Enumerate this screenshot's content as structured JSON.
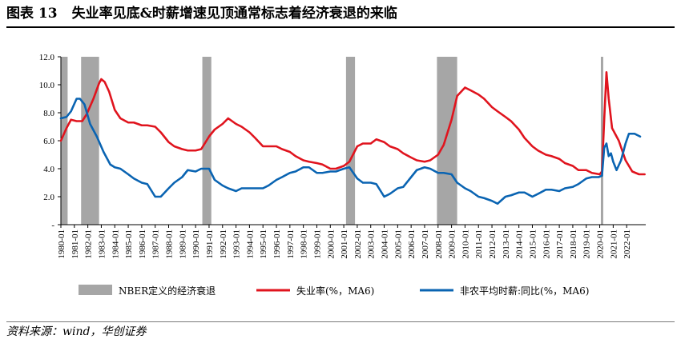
{
  "figure": {
    "number": "图表 13",
    "title": "失业率见底&时薪增速见顶通常标志着经济衰退的来临",
    "source": "资料来源：wind，华创证券"
  },
  "chart_data": {
    "type": "line",
    "title": "失业率见底&时薪增速见顶通常标志着经济衰退的来临",
    "xlabel": "",
    "ylabel": "",
    "ylim": [
      0,
      12
    ],
    "xlim": [
      "1980-01",
      "2023-06"
    ],
    "y_ticks": [
      "-",
      "2.0",
      "4.0",
      "6.0",
      "8.0",
      "10.0",
      "12.0"
    ],
    "x_ticks": [
      "1980-01",
      "1981-01",
      "1982-01",
      "1983-01",
      "1984-01",
      "1985-01",
      "1986-01",
      "1987-01",
      "1988-01",
      "1989-01",
      "1990-01",
      "1991-01",
      "1992-01",
      "1993-01",
      "1994-01",
      "1995-01",
      "1996-01",
      "1997-01",
      "1998-01",
      "1999-01",
      "2000-01",
      "2001-01",
      "2002-01",
      "2003-01",
      "2004-01",
      "2005-01",
      "2006-01",
      "2007-01",
      "2008-01",
      "2009-01",
      "2010-01",
      "2011-01",
      "2012-01",
      "2013-01",
      "2014-01",
      "2015-01",
      "2016-01",
      "2017-01",
      "2018-01",
      "2019-01",
      "2020-01",
      "2021-01",
      "2022-01"
    ],
    "grid": false,
    "legend_position": "bottom",
    "recessions": {
      "name": "NBER定义的经济衰退",
      "color": "#a6a6a6",
      "periods": [
        [
          "1980-01",
          "1980-07"
        ],
        [
          "1981-07",
          "1982-11"
        ],
        [
          "1990-07",
          "1991-03"
        ],
        [
          "2001-03",
          "2001-11"
        ],
        [
          "2007-12",
          "2009-06"
        ],
        [
          "2020-02",
          "2020-04"
        ]
      ]
    },
    "series": [
      {
        "name": "失业率(%，MA6)",
        "color": "#e0141e",
        "points": [
          [
            "1980-01",
            6.0
          ],
          [
            "1980-06",
            6.9
          ],
          [
            "1980-10",
            7.5
          ],
          [
            "1981-03",
            7.4
          ],
          [
            "1981-08",
            7.4
          ],
          [
            "1981-12",
            7.9
          ],
          [
            "1982-06",
            9.0
          ],
          [
            "1982-11",
            10.1
          ],
          [
            "1983-01",
            10.4
          ],
          [
            "1983-04",
            10.2
          ],
          [
            "1983-08",
            9.5
          ],
          [
            "1984-01",
            8.2
          ],
          [
            "1984-06",
            7.6
          ],
          [
            "1985-01",
            7.3
          ],
          [
            "1985-06",
            7.3
          ],
          [
            "1986-01",
            7.1
          ],
          [
            "1986-06",
            7.1
          ],
          [
            "1987-01",
            7.0
          ],
          [
            "1987-06",
            6.6
          ],
          [
            "1988-01",
            5.9
          ],
          [
            "1988-06",
            5.6
          ],
          [
            "1989-01",
            5.4
          ],
          [
            "1989-06",
            5.3
          ],
          [
            "1990-01",
            5.3
          ],
          [
            "1990-06",
            5.4
          ],
          [
            "1991-01",
            6.3
          ],
          [
            "1991-06",
            6.8
          ],
          [
            "1992-01",
            7.2
          ],
          [
            "1992-06",
            7.6
          ],
          [
            "1993-01",
            7.2
          ],
          [
            "1993-06",
            7.0
          ],
          [
            "1994-01",
            6.6
          ],
          [
            "1994-06",
            6.2
          ],
          [
            "1995-01",
            5.6
          ],
          [
            "1995-06",
            5.6
          ],
          [
            "1996-01",
            5.6
          ],
          [
            "1996-06",
            5.4
          ],
          [
            "1997-01",
            5.2
          ],
          [
            "1997-06",
            4.9
          ],
          [
            "1998-01",
            4.6
          ],
          [
            "1998-06",
            4.5
          ],
          [
            "1999-01",
            4.4
          ],
          [
            "1999-06",
            4.3
          ],
          [
            "2000-01",
            4.0
          ],
          [
            "2000-06",
            4.0
          ],
          [
            "2001-01",
            4.2
          ],
          [
            "2001-06",
            4.5
          ],
          [
            "2002-01",
            5.6
          ],
          [
            "2002-06",
            5.8
          ],
          [
            "2003-01",
            5.8
          ],
          [
            "2003-06",
            6.1
          ],
          [
            "2004-01",
            5.9
          ],
          [
            "2004-06",
            5.6
          ],
          [
            "2005-01",
            5.4
          ],
          [
            "2005-06",
            5.1
          ],
          [
            "2006-01",
            4.8
          ],
          [
            "2006-06",
            4.6
          ],
          [
            "2007-01",
            4.5
          ],
          [
            "2007-06",
            4.6
          ],
          [
            "2008-01",
            5.0
          ],
          [
            "2008-06",
            5.7
          ],
          [
            "2009-01",
            7.5
          ],
          [
            "2009-06",
            9.2
          ],
          [
            "2010-01",
            9.8
          ],
          [
            "2010-06",
            9.6
          ],
          [
            "2011-01",
            9.3
          ],
          [
            "2011-06",
            9.0
          ],
          [
            "2012-01",
            8.4
          ],
          [
            "2012-06",
            8.1
          ],
          [
            "2013-01",
            7.7
          ],
          [
            "2013-06",
            7.4
          ],
          [
            "2014-01",
            6.8
          ],
          [
            "2014-06",
            6.2
          ],
          [
            "2015-01",
            5.6
          ],
          [
            "2015-06",
            5.3
          ],
          [
            "2016-01",
            5.0
          ],
          [
            "2016-06",
            4.9
          ],
          [
            "2017-01",
            4.7
          ],
          [
            "2017-06",
            4.4
          ],
          [
            "2018-01",
            4.2
          ],
          [
            "2018-06",
            3.9
          ],
          [
            "2019-01",
            3.9
          ],
          [
            "2019-06",
            3.7
          ],
          [
            "2020-01",
            3.6
          ],
          [
            "2020-03",
            3.8
          ],
          [
            "2020-05",
            7.5
          ],
          [
            "2020-07",
            10.9
          ],
          [
            "2020-09",
            9.0
          ],
          [
            "2020-12",
            6.9
          ],
          [
            "2021-06",
            6.0
          ],
          [
            "2021-12",
            4.6
          ],
          [
            "2022-06",
            3.8
          ],
          [
            "2022-12",
            3.6
          ],
          [
            "2023-05",
            3.6
          ]
        ]
      },
      {
        "name": "非农平均时薪:同比(%，MA6)",
        "color": "#0a64b2",
        "points": [
          [
            "1980-01",
            7.6
          ],
          [
            "1980-06",
            7.7
          ],
          [
            "1980-10",
            8.1
          ],
          [
            "1981-03",
            9.0
          ],
          [
            "1981-06",
            9.0
          ],
          [
            "1981-10",
            8.6
          ],
          [
            "1982-03",
            7.2
          ],
          [
            "1982-09",
            6.3
          ],
          [
            "1983-03",
            5.2
          ],
          [
            "1983-09",
            4.3
          ],
          [
            "1984-01",
            4.1
          ],
          [
            "1984-06",
            4.0
          ],
          [
            "1985-01",
            3.6
          ],
          [
            "1985-06",
            3.3
          ],
          [
            "1986-01",
            3.0
          ],
          [
            "1986-06",
            2.9
          ],
          [
            "1987-01",
            2.0
          ],
          [
            "1987-06",
            2.0
          ],
          [
            "1988-01",
            2.6
          ],
          [
            "1988-06",
            3.0
          ],
          [
            "1989-01",
            3.4
          ],
          [
            "1989-06",
            3.9
          ],
          [
            "1990-01",
            3.8
          ],
          [
            "1990-06",
            4.0
          ],
          [
            "1991-01",
            4.0
          ],
          [
            "1991-06",
            3.2
          ],
          [
            "1992-01",
            2.8
          ],
          [
            "1992-06",
            2.6
          ],
          [
            "1993-01",
            2.4
          ],
          [
            "1993-06",
            2.6
          ],
          [
            "1994-01",
            2.6
          ],
          [
            "1994-06",
            2.6
          ],
          [
            "1995-01",
            2.6
          ],
          [
            "1995-06",
            2.8
          ],
          [
            "1996-01",
            3.2
          ],
          [
            "1996-06",
            3.4
          ],
          [
            "1997-01",
            3.7
          ],
          [
            "1997-06",
            3.8
          ],
          [
            "1998-01",
            4.1
          ],
          [
            "1998-06",
            4.1
          ],
          [
            "1999-01",
            3.7
          ],
          [
            "1999-06",
            3.7
          ],
          [
            "2000-01",
            3.8
          ],
          [
            "2000-06",
            3.8
          ],
          [
            "2001-01",
            4.0
          ],
          [
            "2001-06",
            4.1
          ],
          [
            "2002-01",
            3.3
          ],
          [
            "2002-06",
            3.0
          ],
          [
            "2003-01",
            3.0
          ],
          [
            "2003-06",
            2.9
          ],
          [
            "2004-01",
            2.0
          ],
          [
            "2004-06",
            2.2
          ],
          [
            "2005-01",
            2.6
          ],
          [
            "2005-06",
            2.7
          ],
          [
            "2006-01",
            3.4
          ],
          [
            "2006-06",
            3.9
          ],
          [
            "2007-01",
            4.1
          ],
          [
            "2007-06",
            4.0
          ],
          [
            "2008-01",
            3.7
          ],
          [
            "2008-06",
            3.7
          ],
          [
            "2009-01",
            3.6
          ],
          [
            "2009-06",
            3.0
          ],
          [
            "2010-01",
            2.6
          ],
          [
            "2010-06",
            2.4
          ],
          [
            "2011-01",
            2.0
          ],
          [
            "2011-06",
            1.9
          ],
          [
            "2012-01",
            1.7
          ],
          [
            "2012-06",
            1.5
          ],
          [
            "2013-01",
            2.0
          ],
          [
            "2013-06",
            2.1
          ],
          [
            "2014-01",
            2.3
          ],
          [
            "2014-06",
            2.3
          ],
          [
            "2015-01",
            2.0
          ],
          [
            "2015-06",
            2.2
          ],
          [
            "2016-01",
            2.5
          ],
          [
            "2016-06",
            2.5
          ],
          [
            "2017-01",
            2.4
          ],
          [
            "2017-06",
            2.6
          ],
          [
            "2018-01",
            2.7
          ],
          [
            "2018-06",
            2.9
          ],
          [
            "2019-01",
            3.3
          ],
          [
            "2019-06",
            3.4
          ],
          [
            "2019-12",
            3.4
          ],
          [
            "2020-03",
            3.5
          ],
          [
            "2020-05",
            5.5
          ],
          [
            "2020-07",
            5.8
          ],
          [
            "2020-09",
            4.9
          ],
          [
            "2020-11",
            5.1
          ],
          [
            "2021-01",
            4.5
          ],
          [
            "2021-04",
            3.9
          ],
          [
            "2021-08",
            4.6
          ],
          [
            "2021-12",
            5.8
          ],
          [
            "2022-03",
            6.5
          ],
          [
            "2022-08",
            6.5
          ],
          [
            "2023-01",
            6.3
          ]
        ]
      }
    ]
  }
}
